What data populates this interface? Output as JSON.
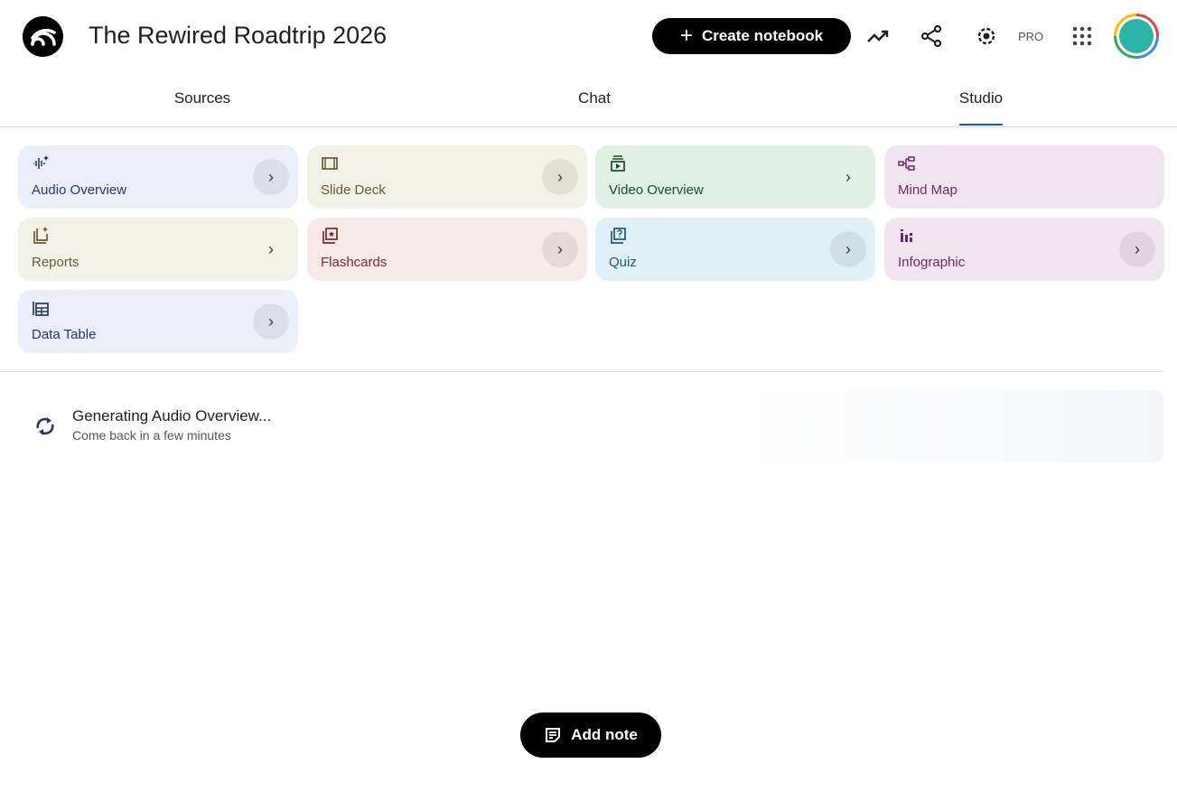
{
  "header": {
    "title": "The Rewired Roadtrip 2026",
    "create_label": "Create notebook",
    "pro_label": "PRO"
  },
  "tabs": [
    {
      "label": "Sources"
    },
    {
      "label": "Chat"
    },
    {
      "label": "Studio",
      "active": true
    }
  ],
  "studio_tools": [
    {
      "label": "Audio Overview",
      "icon": "audio-waveform-icon",
      "bg": "#eceff9",
      "fg": "#26386b"
    },
    {
      "label": "Slide Deck",
      "icon": "slides-icon",
      "bg": "#f2f1e8",
      "fg": "#6b5a33"
    },
    {
      "label": "Video Overview",
      "icon": "video-icon",
      "bg": "#e1f0e4",
      "fg": "#1e4a2a"
    },
    {
      "label": "Mind Map",
      "icon": "mind-map-icon",
      "bg": "#f1e6f0",
      "fg": "#6a2a66"
    },
    {
      "label": "Reports",
      "icon": "reports-icon",
      "bg": "#f2f1e8",
      "fg": "#6b5a33"
    },
    {
      "label": "Flashcards",
      "icon": "flashcards-icon",
      "bg": "#f7ebea",
      "fg": "#7a2a2a"
    },
    {
      "label": "Quiz",
      "icon": "quiz-icon",
      "bg": "#dff0f6",
      "fg": "#1d5a78"
    },
    {
      "label": "Infographic",
      "icon": "infographic-icon",
      "bg": "#f1e6f0",
      "fg": "#6a2a66"
    },
    {
      "label": "Data Table",
      "icon": "table-icon",
      "bg": "#eceff9",
      "fg": "#26386b"
    }
  ],
  "generating": {
    "title": "Generating Audio Overview...",
    "subtitle": "Come back in a few minutes"
  },
  "add_note_label": "Add note"
}
